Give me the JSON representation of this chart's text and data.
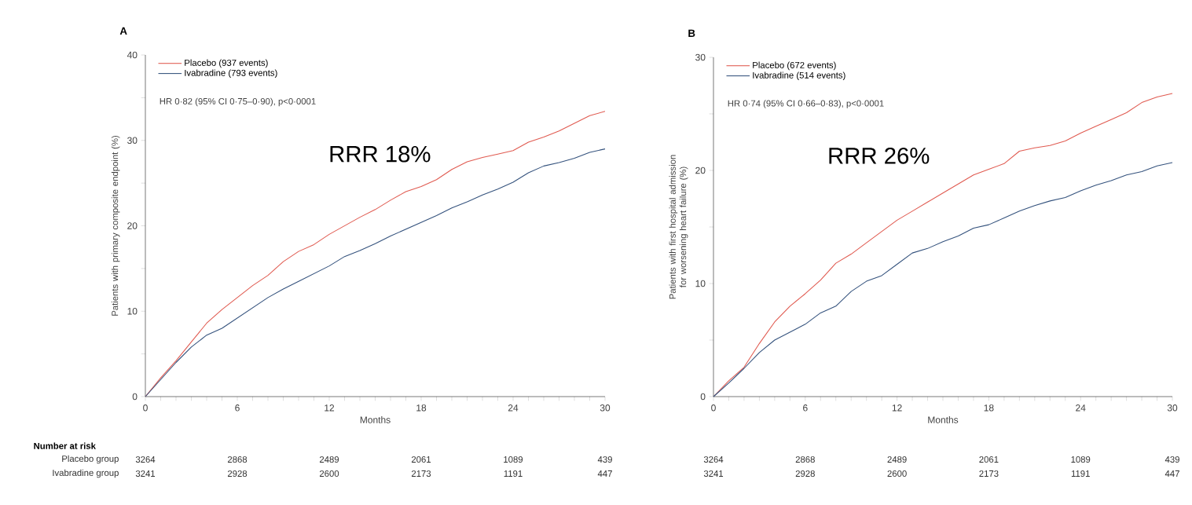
{
  "chart_data": [
    {
      "type": "line",
      "title": "A",
      "xlabel": "Months",
      "ylabel": "Patients with primary composite endpoint (%)",
      "x": [
        0,
        1,
        2,
        3,
        4,
        5,
        6,
        7,
        8,
        9,
        10,
        11,
        12,
        13,
        14,
        15,
        16,
        17,
        18,
        19,
        20,
        21,
        22,
        23,
        24,
        25,
        26,
        27,
        28,
        29,
        30
      ],
      "series": [
        {
          "name": "Placebo (937 events)",
          "color": "#e05a50",
          "values": [
            0,
            2.2,
            4.2,
            6.4,
            8.6,
            10.2,
            11.6,
            13.0,
            14.2,
            15.8,
            17.0,
            17.8,
            19.0,
            20.0,
            21.0,
            21.9,
            23.0,
            24.0,
            24.6,
            25.4,
            26.6,
            27.5,
            28.0,
            28.4,
            28.8,
            29.8,
            30.4,
            31.1,
            32.0,
            32.9,
            33.4
          ]
        },
        {
          "name": "Ivabradine (793 events)",
          "color": "#34527d",
          "values": [
            0,
            2.0,
            4.0,
            5.8,
            7.2,
            8.0,
            9.2,
            10.4,
            11.6,
            12.6,
            13.5,
            14.4,
            15.3,
            16.4,
            17.1,
            17.9,
            18.8,
            19.6,
            20.4,
            21.2,
            22.1,
            22.8,
            23.6,
            24.3,
            25.1,
            26.2,
            27.0,
            27.4,
            27.9,
            28.6,
            29.0
          ]
        }
      ],
      "xlim": [
        0,
        30
      ],
      "ylim": [
        0,
        40
      ],
      "xticks": [
        0,
        {
          "value": 1,
          "label": null
        },
        {
          "value": 2,
          "label": null
        },
        {
          "value": 3,
          "label": null
        },
        {
          "value": 4,
          "label": null
        },
        {
          "value": 5,
          "label": null
        },
        6,
        {
          "value": 7,
          "label": null
        },
        {
          "value": 8,
          "label": null
        },
        {
          "value": 9,
          "label": null
        },
        {
          "value": 10,
          "label": null
        },
        {
          "value": 11,
          "label": null
        },
        12,
        {
          "value": 13,
          "label": null
        },
        {
          "value": 14,
          "label": null
        },
        {
          "value": 15,
          "label": null
        },
        {
          "value": 16,
          "label": null
        },
        {
          "value": 17,
          "label": null
        },
        18,
        {
          "value": 19,
          "label": null
        },
        {
          "value": 20,
          "label": null
        },
        {
          "value": 21,
          "label": null
        },
        {
          "value": 22,
          "label": null
        },
        {
          "value": 23,
          "label": null
        },
        24,
        {
          "value": 25,
          "label": null
        },
        {
          "value": 26,
          "label": null
        },
        {
          "value": 27,
          "label": null
        },
        {
          "value": 28,
          "label": null
        },
        {
          "value": 29,
          "label": null
        },
        30
      ],
      "yticks": [
        0,
        {
          "value": 5,
          "label": null
        },
        10,
        {
          "value": 15,
          "label": null
        },
        20,
        {
          "value": 25,
          "label": null
        },
        30,
        {
          "value": 35,
          "label": null
        },
        40
      ],
      "legend": "top left",
      "annotations": [
        "HR 0·82 (95% CI 0·75–0·90), p<0·0001",
        "RRR 18%",
        "Number at risk",
        "Placebo group",
        "Ivabradine group",
        "3264",
        "2868",
        "2489",
        "2061",
        "1089",
        "439",
        "3241",
        "2928",
        "2600",
        "2173",
        "1191",
        "447"
      ]
    },
    {
      "type": "line",
      "title": "B",
      "xlabel": "Months",
      "ylabel": "Patients with first hospital admission for worsening heart failure (%)",
      "x": [
        0,
        1,
        2,
        3,
        4,
        5,
        6,
        7,
        8,
        9,
        10,
        11,
        12,
        13,
        14,
        15,
        16,
        17,
        18,
        19,
        20,
        21,
        22,
        23,
        24,
        25,
        26,
        27,
        28,
        29,
        30
      ],
      "series": [
        {
          "name": "Placebo (672 events)",
          "color": "#e05a50",
          "values": [
            0,
            1.4,
            2.6,
            4.7,
            6.6,
            8.0,
            9.1,
            10.3,
            11.8,
            12.6,
            13.6,
            14.6,
            15.6,
            16.4,
            17.2,
            18.0,
            18.8,
            19.6,
            20.1,
            20.6,
            21.7,
            22.0,
            22.2,
            22.6,
            23.3,
            23.9,
            24.5,
            25.1,
            26.0,
            26.5,
            26.8
          ]
        },
        {
          "name": "Ivabradine (514 events)",
          "color": "#34527d",
          "values": [
            0,
            1.2,
            2.5,
            3.9,
            5.0,
            5.7,
            6.4,
            7.4,
            8.0,
            9.3,
            10.2,
            10.7,
            11.7,
            12.7,
            13.1,
            13.7,
            14.2,
            14.9,
            15.2,
            15.8,
            16.4,
            16.9,
            17.3,
            17.6,
            18.2,
            18.7,
            19.1,
            19.6,
            19.9,
            20.4,
            20.7
          ]
        }
      ],
      "xlim": [
        0,
        30
      ],
      "ylim": [
        0,
        30
      ],
      "xticks": [
        0,
        {
          "value": 1,
          "label": null
        },
        {
          "value": 2,
          "label": null
        },
        {
          "value": 3,
          "label": null
        },
        {
          "value": 4,
          "label": null
        },
        {
          "value": 5,
          "label": null
        },
        6,
        {
          "value": 7,
          "label": null
        },
        {
          "value": 8,
          "label": null
        },
        {
          "value": 9,
          "label": null
        },
        {
          "value": 10,
          "label": null
        },
        {
          "value": 11,
          "label": null
        },
        12,
        {
          "value": 13,
          "label": null
        },
        {
          "value": 14,
          "label": null
        },
        {
          "value": 15,
          "label": null
        },
        {
          "value": 16,
          "label": null
        },
        {
          "value": 17,
          "label": null
        },
        18,
        {
          "value": 19,
          "label": null
        },
        {
          "value": 20,
          "label": null
        },
        {
          "value": 21,
          "label": null
        },
        {
          "value": 22,
          "label": null
        },
        {
          "value": 23,
          "label": null
        },
        24,
        {
          "value": 25,
          "label": null
        },
        {
          "value": 26,
          "label": null
        },
        {
          "value": 27,
          "label": null
        },
        {
          "value": 28,
          "label": null
        },
        {
          "value": 29,
          "label": null
        },
        30
      ],
      "yticks": [
        0,
        {
          "value": 5,
          "label": null
        },
        10,
        {
          "value": 15,
          "label": null
        },
        20,
        {
          "value": 25,
          "label": null
        },
        30
      ],
      "legend": "top left",
      "annotations": [
        "HR 0·74 (95% CI 0·66–0·83), p<0·0001",
        "RRR 26%",
        "3264",
        "2868",
        "2489",
        "2061",
        "1089",
        "439",
        "3241",
        "2928",
        "2600",
        "2173",
        "1191",
        "447"
      ]
    }
  ]
}
